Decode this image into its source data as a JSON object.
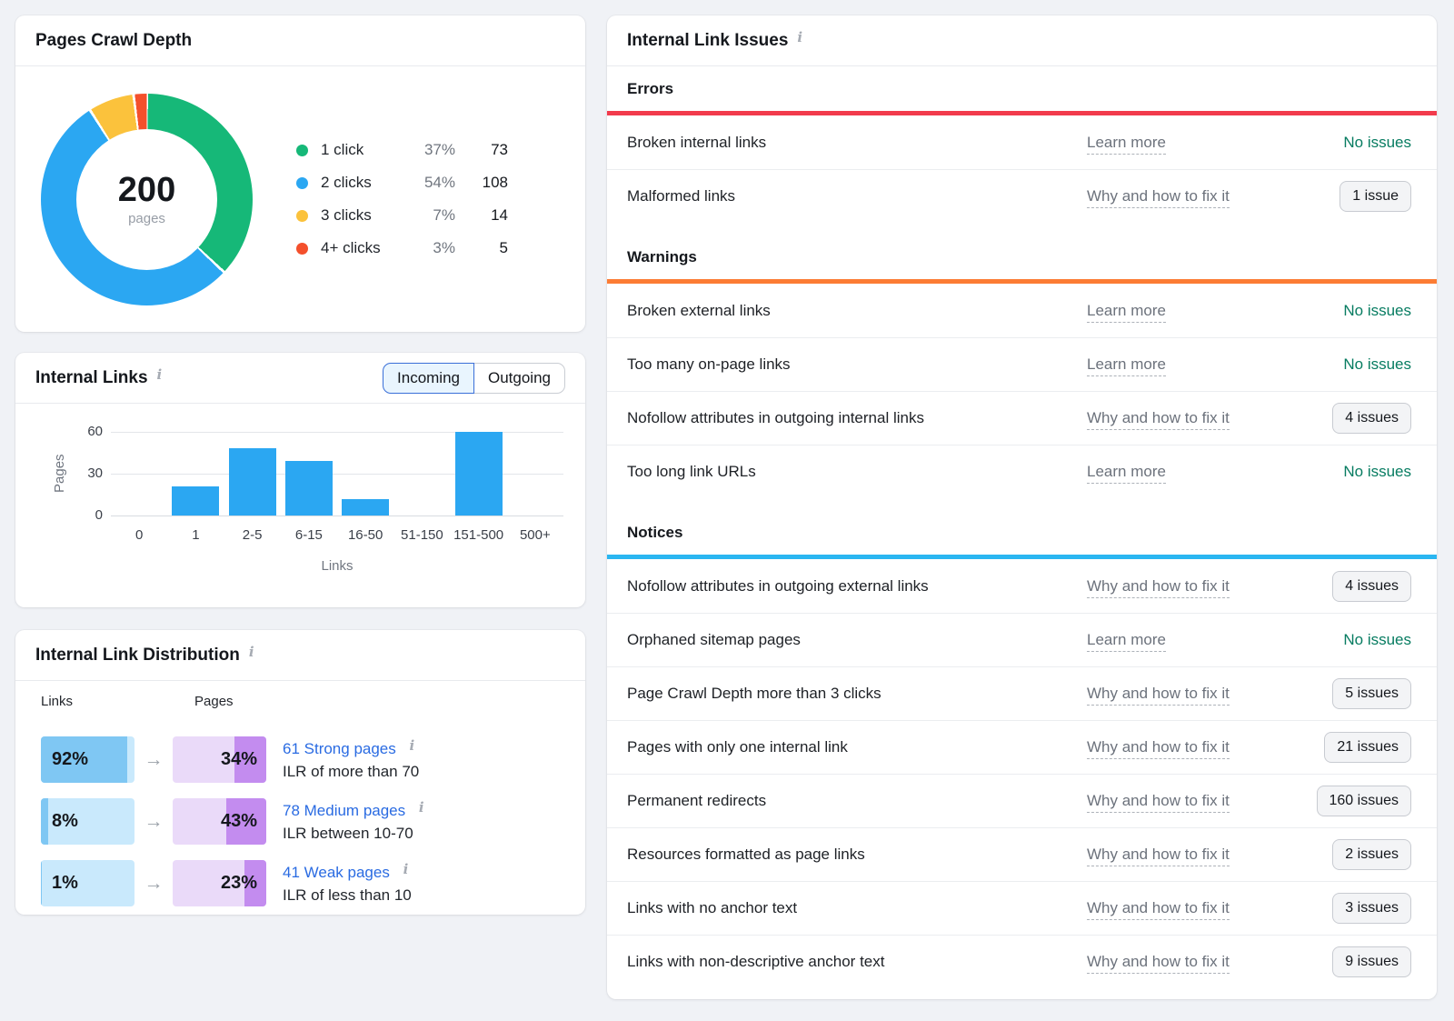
{
  "icons": {
    "info": "i",
    "arrow": "→"
  },
  "cards": {
    "crawl_depth": {
      "title": "Pages Crawl Depth",
      "center_value": "200",
      "center_label": "pages"
    },
    "internal_links": {
      "title": "Internal Links",
      "toggle": [
        "Incoming",
        "Outgoing"
      ],
      "selected": "Incoming"
    },
    "distribution": {
      "title": "Internal Link Distribution",
      "col_links": "Links",
      "col_pages": "Pages",
      "rows": [
        {
          "links_pct": 92,
          "pages_pct": 34,
          "pages_link": "61 Strong pages",
          "ilr": "ILR of more than 70"
        },
        {
          "links_pct": 8,
          "pages_pct": 43,
          "pages_link": "78 Medium pages",
          "ilr": "ILR between 10-70"
        },
        {
          "links_pct": 1,
          "pages_pct": 23,
          "pages_link": "41 Weak pages",
          "ilr": "ILR of less than 10"
        }
      ]
    },
    "issues": {
      "title": "Internal Link Issues",
      "sections": [
        {
          "title": "Errors",
          "color": "#F23B4C",
          "rows": [
            {
              "name": "Broken internal links",
              "link": "Learn more",
              "status": "No issues",
              "badge": false
            },
            {
              "name": "Malformed links",
              "link": "Why and how to fix it",
              "status": "1 issue",
              "badge": true
            }
          ]
        },
        {
          "title": "Warnings",
          "color": "#FC7C34",
          "rows": [
            {
              "name": "Broken external links",
              "link": "Learn more",
              "status": "No issues",
              "badge": false
            },
            {
              "name": "Too many on-page links",
              "link": "Learn more",
              "status": "No issues",
              "badge": false
            },
            {
              "name": "Nofollow attributes in outgoing internal links",
              "link": "Why and how to fix it",
              "status": "4 issues",
              "badge": true
            },
            {
              "name": "Too long link URLs",
              "link": "Learn more",
              "status": "No issues",
              "badge": false
            }
          ]
        },
        {
          "title": "Notices",
          "color": "#2AB6F1",
          "rows": [
            {
              "name": "Nofollow attributes in outgoing external links",
              "link": "Why and how to fix it",
              "status": "4 issues",
              "badge": true
            },
            {
              "name": "Orphaned sitemap pages",
              "link": "Learn more",
              "status": "No issues",
              "badge": false
            },
            {
              "name": "Page Crawl Depth more than 3 clicks",
              "link": "Why and how to fix it",
              "status": "5 issues",
              "badge": true
            },
            {
              "name": "Pages with only one internal link",
              "link": "Why and how to fix it",
              "status": "21 issues",
              "badge": true
            },
            {
              "name": "Permanent redirects",
              "link": "Why and how to fix it",
              "status": "160 issues",
              "badge": true
            },
            {
              "name": "Resources formatted as page links",
              "link": "Why and how to fix it",
              "status": "2 issues",
              "badge": true
            },
            {
              "name": "Links with no anchor text",
              "link": "Why and how to fix it",
              "status": "3 issues",
              "badge": true
            },
            {
              "name": "Links with non-descriptive anchor text",
              "link": "Why and how to fix it",
              "status": "9 issues",
              "badge": true
            }
          ]
        }
      ]
    }
  },
  "chart_data": [
    {
      "type": "pie",
      "donut": true,
      "title": "Pages Crawl Depth",
      "center_total": 200,
      "center_unit": "pages",
      "labels": [
        "1 click",
        "2 clicks",
        "3 clicks",
        "4+ clicks"
      ],
      "values_pct": [
        37,
        54,
        7,
        3
      ],
      "counts": [
        73,
        108,
        14,
        5
      ],
      "colors": [
        "#16B878",
        "#2BA7F2",
        "#FBC23C",
        "#F4502C"
      ],
      "legend_position": "right"
    },
    {
      "type": "bar",
      "title": "Internal Links (Incoming)",
      "categories": [
        "0",
        "1",
        "2-5",
        "6-15",
        "16-50",
        "51-150",
        "151-500",
        "500+"
      ],
      "values": [
        0,
        21,
        48,
        39,
        12,
        0,
        60,
        0
      ],
      "xlabel": "Links",
      "ylabel": "Pages",
      "yticks": [
        0,
        30,
        60
      ],
      "ylim": [
        0,
        60
      ],
      "bar_color": "#2BA7F2",
      "grid": true
    }
  ]
}
